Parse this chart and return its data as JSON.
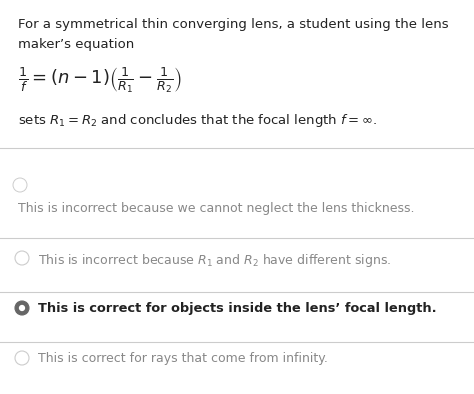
{
  "bg_color": "#ffffff",
  "header_line1": "For a symmetrical thin converging lens, a student using the lens",
  "header_line2": "maker’s equation",
  "equation": "$\\frac{1}{f} = (n-1)\\left(\\frac{1}{R_1} - \\frac{1}{R_2}\\right)$",
  "sets_text": "sets $R_1 = R_2$ and concludes that the focal length $f = \\infty$.",
  "divider_color": "#cccccc",
  "options": [
    {
      "text": "This is incorrect because we cannot neglect the lens thickness.",
      "selected": false,
      "bold": false,
      "radio_color": "#bbbbbb",
      "text_color": "#888888",
      "has_radio": false
    },
    {
      "text": "This is incorrect because $R_1$ and $R_2$ have different signs.",
      "selected": false,
      "bold": false,
      "radio_color": "#bbbbbb",
      "text_color": "#888888",
      "has_radio": true
    },
    {
      "text": "This is correct for objects inside the lens’ focal length.",
      "selected": true,
      "bold": true,
      "radio_color": "#555555",
      "text_color": "#222222",
      "has_radio": true
    },
    {
      "text": "This is correct for rays that come from infinity.",
      "selected": false,
      "bold": false,
      "radio_color": "#bbbbbb",
      "text_color": "#888888",
      "has_radio": true
    }
  ],
  "header_fontsize": 9.5,
  "equation_fontsize": 13,
  "sets_fontsize": 9.5,
  "option_fontsize": 9.0
}
